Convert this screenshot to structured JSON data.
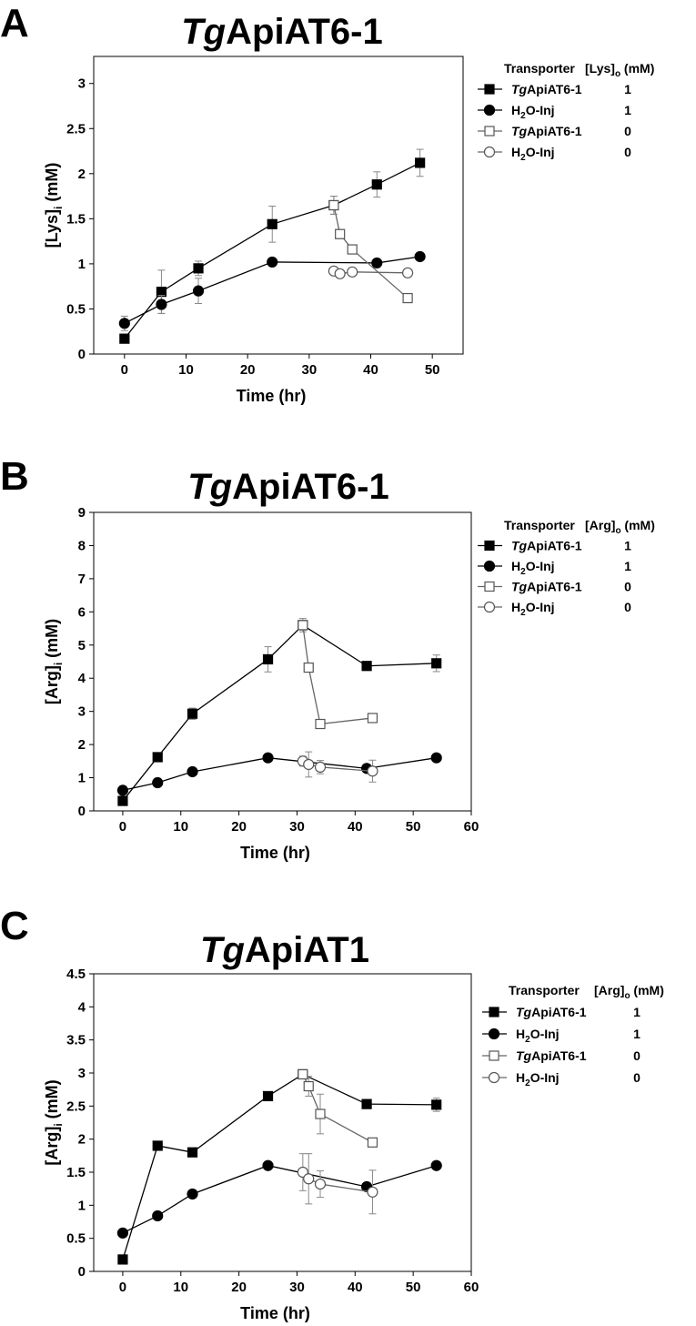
{
  "chart_data": [
    {
      "panel": "A",
      "type": "line",
      "title": "TgApiAT6-1",
      "title_italic_prefix": "Tg",
      "title_rest": "ApiAT6-1",
      "xlabel": "Time (hr)",
      "ylabel_main": "[Lys]",
      "ylabel_sub": "i",
      "ylabel_units": " (mM)",
      "xlim": [
        -5,
        55
      ],
      "ylim": [
        0,
        3.3
      ],
      "xticks": [
        0,
        10,
        20,
        30,
        40,
        50
      ],
      "yticks": [
        0,
        0.5,
        1,
        1.5,
        2,
        2.5,
        3
      ],
      "ytick_labels": [
        "0",
        "0.5",
        "1",
        "1.5",
        "2",
        "2.5",
        "3"
      ],
      "legend": {
        "header_transporter": "Transporter",
        "header_conc_main": "[Lys]",
        "header_conc_sub": "o",
        "header_conc_units": " (mM)"
      },
      "series": [
        {
          "name": "TgApiAT6-1",
          "label_italic": "Tg",
          "label_rest": "ApiAT6-1",
          "marker": "square",
          "filled": true,
          "conc": "1",
          "x": [
            0,
            6,
            12,
            24,
            34,
            41,
            48
          ],
          "y": [
            0.17,
            0.69,
            0.95,
            1.44,
            1.65,
            1.88,
            2.12
          ],
          "err": [
            0.03,
            0.24,
            0.08,
            0.2,
            0.1,
            0.14,
            0.15
          ]
        },
        {
          "name": "H2O-Inj",
          "label_italic": "",
          "label_rest": "H2O-Inj",
          "label_pre": "H",
          "label_sub": "2",
          "label_post": "O-Inj",
          "marker": "circle",
          "filled": true,
          "conc": "1",
          "x": [
            0,
            6,
            12,
            24,
            41,
            48
          ],
          "y": [
            0.34,
            0.55,
            0.7,
            1.02,
            1.01,
            1.08
          ],
          "err": [
            0.08,
            0.1,
            0.14,
            0.03,
            0.03,
            0.03
          ]
        },
        {
          "name": "TgApiAT6-1",
          "label_italic": "Tg",
          "label_rest": "ApiAT6-1",
          "marker": "square",
          "filled": false,
          "conc": "0",
          "x": [
            34,
            35,
            37,
            46
          ],
          "y": [
            1.65,
            1.33,
            1.16,
            0.62
          ],
          "err": [
            0.1,
            0.05,
            0.03,
            0.03
          ]
        },
        {
          "name": "H2O-Inj",
          "label_italic": "",
          "label_pre": "H",
          "label_sub": "2",
          "label_post": "O-Inj",
          "marker": "circle",
          "filled": false,
          "conc": "0",
          "x": [
            34,
            35,
            37,
            46
          ],
          "y": [
            0.92,
            0.89,
            0.91,
            0.9
          ],
          "err": [
            0.04,
            0.04,
            0.03,
            0.03
          ]
        }
      ]
    },
    {
      "panel": "B",
      "type": "line",
      "title": "TgApiAT6-1",
      "title_italic_prefix": "Tg",
      "title_rest": "ApiAT6-1",
      "xlabel": "Time (hr)",
      "ylabel_main": "[Arg]",
      "ylabel_sub": "i",
      "ylabel_units": " (mM)",
      "xlim": [
        -5,
        60
      ],
      "ylim": [
        0,
        9
      ],
      "xticks": [
        0,
        10,
        20,
        30,
        40,
        50,
        60
      ],
      "yticks": [
        0,
        1,
        2,
        3,
        4,
        5,
        6,
        7,
        8,
        9
      ],
      "ytick_labels": [
        "0",
        "1",
        "2",
        "3",
        "4",
        "5",
        "6",
        "7",
        "8",
        "9"
      ],
      "legend": {
        "header_transporter": "Transporter",
        "header_conc_main": "[Arg]",
        "header_conc_sub": "o",
        "header_conc_units": " (mM)"
      },
      "series": [
        {
          "name": "TgApiAT6-1",
          "label_italic": "Tg",
          "label_rest": "ApiAT6-1",
          "marker": "square",
          "filled": true,
          "conc": "1",
          "x": [
            0,
            6,
            12,
            25,
            31,
            42,
            54
          ],
          "y": [
            0.3,
            1.62,
            2.93,
            4.57,
            5.6,
            4.37,
            4.45
          ],
          "err": [
            0.06,
            0.08,
            0.17,
            0.38,
            0.2,
            0.1,
            0.25
          ]
        },
        {
          "name": "H2O-Inj",
          "label_pre": "H",
          "label_sub": "2",
          "label_post": "O-Inj",
          "marker": "circle",
          "filled": true,
          "conc": "1",
          "x": [
            0,
            6,
            12,
            25,
            42,
            54
          ],
          "y": [
            0.62,
            0.85,
            1.18,
            1.6,
            1.28,
            1.6
          ],
          "err": [
            0.05,
            0.05,
            0.06,
            0.05,
            0.05,
            0.05
          ]
        },
        {
          "name": "TgApiAT6-1",
          "label_italic": "Tg",
          "label_rest": "ApiAT6-1",
          "marker": "square",
          "filled": false,
          "conc": "0",
          "x": [
            31,
            32,
            34,
            43
          ],
          "y": [
            5.6,
            4.32,
            2.62,
            2.8
          ],
          "err": [
            0.15,
            0.1,
            0.08,
            0.08
          ]
        },
        {
          "name": "H2O-Inj",
          "label_pre": "H",
          "label_sub": "2",
          "label_post": "O-Inj",
          "marker": "circle",
          "filled": false,
          "conc": "0",
          "x": [
            31,
            32,
            34,
            43
          ],
          "y": [
            1.5,
            1.4,
            1.32,
            1.2
          ],
          "err": [
            0.15,
            0.38,
            0.2,
            0.33
          ]
        }
      ]
    },
    {
      "panel": "C",
      "type": "line",
      "title": "TgApiAT1",
      "title_italic_prefix": "Tg",
      "title_rest": "ApiAT1",
      "xlabel": "Time (hr)",
      "ylabel_main": "[Arg]",
      "ylabel_sub": "i",
      "ylabel_units": " (mM)",
      "xlim": [
        -5,
        60
      ],
      "ylim": [
        0,
        4.5
      ],
      "xticks": [
        0,
        10,
        20,
        30,
        40,
        50,
        60
      ],
      "yticks": [
        0,
        0.5,
        1,
        1.5,
        2,
        2.5,
        3,
        3.5,
        4,
        4.5
      ],
      "ytick_labels": [
        "0",
        "0.5",
        "1",
        "1.5",
        "2",
        "2.5",
        "3",
        "3.5",
        "4",
        "4.5"
      ],
      "legend": {
        "header_transporter": "Transporter",
        "header_conc_main": "[Arg]",
        "header_conc_sub": "o",
        "header_conc_units": " (mM)"
      },
      "series": [
        {
          "name": "TgApiAT6-1",
          "label_italic": "Tg",
          "label_rest": "ApiAT6-1",
          "marker": "square",
          "filled": true,
          "conc": "1",
          "x": [
            0,
            6,
            12,
            25,
            31,
            42,
            54
          ],
          "y": [
            0.18,
            1.9,
            1.8,
            2.65,
            2.98,
            2.53,
            2.52
          ],
          "err": [
            0.03,
            0.03,
            0.04,
            0.03,
            0.05,
            0.03,
            0.1
          ]
        },
        {
          "name": "H2O-Inj",
          "label_pre": "H",
          "label_sub": "2",
          "label_post": "O-Inj",
          "marker": "circle",
          "filled": true,
          "conc": "1",
          "x": [
            0,
            6,
            12,
            25,
            42,
            54
          ],
          "y": [
            0.58,
            0.84,
            1.17,
            1.6,
            1.28,
            1.6
          ],
          "err": [
            0.03,
            0.03,
            0.04,
            0.03,
            0.03,
            0.03
          ]
        },
        {
          "name": "TgApiAT6-1",
          "label_italic": "Tg",
          "label_rest": "ApiAT6-1",
          "marker": "square",
          "filled": false,
          "conc": "0",
          "x": [
            31,
            32,
            34,
            43
          ],
          "y": [
            2.98,
            2.8,
            2.38,
            1.95
          ],
          "err": [
            0.05,
            0.15,
            0.3,
            0.03
          ]
        },
        {
          "name": "H2O-Inj",
          "label_pre": "H",
          "label_sub": "2",
          "label_post": "O-Inj",
          "marker": "circle",
          "filled": false,
          "conc": "0",
          "x": [
            31,
            32,
            34,
            43
          ],
          "y": [
            1.5,
            1.4,
            1.32,
            1.2
          ],
          "err": [
            0.28,
            0.38,
            0.2,
            0.33
          ]
        }
      ]
    }
  ]
}
